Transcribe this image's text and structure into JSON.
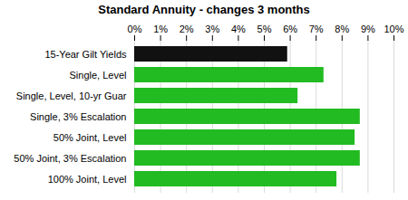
{
  "chart_data": {
    "type": "bar",
    "orientation": "horizontal",
    "title": "Standard Annuity - changes 3 months",
    "categories": [
      "100% Joint, Level",
      "50% Joint, 3% Escalation",
      "50% Joint, Level",
      "Single, 3% Escalation",
      "Single, Level, 10-yr Guar",
      "Single, Level",
      "15-Year Gilt Yields"
    ],
    "values": [
      7.8,
      8.7,
      8.5,
      8.7,
      6.3,
      7.3,
      5.9
    ],
    "colors": [
      "#22bb22",
      "#22bb22",
      "#22bb22",
      "#22bb22",
      "#22bb22",
      "#22bb22",
      "#111111"
    ],
    "xlim": [
      0,
      10
    ],
    "xticks": [
      {
        "value": 0,
        "label": "0%"
      },
      {
        "value": 1,
        "label": "1%"
      },
      {
        "value": 2,
        "label": "2%"
      },
      {
        "value": 3,
        "label": "3%"
      },
      {
        "value": 4,
        "label": "4%"
      },
      {
        "value": 5,
        "label": "5%"
      },
      {
        "value": 6,
        "label": "6%"
      },
      {
        "value": 7,
        "label": "7%"
      },
      {
        "value": 8,
        "label": "8%"
      },
      {
        "value": 9,
        "label": "9%"
      },
      {
        "value": 10,
        "label": "10%"
      }
    ],
    "grid": true
  }
}
